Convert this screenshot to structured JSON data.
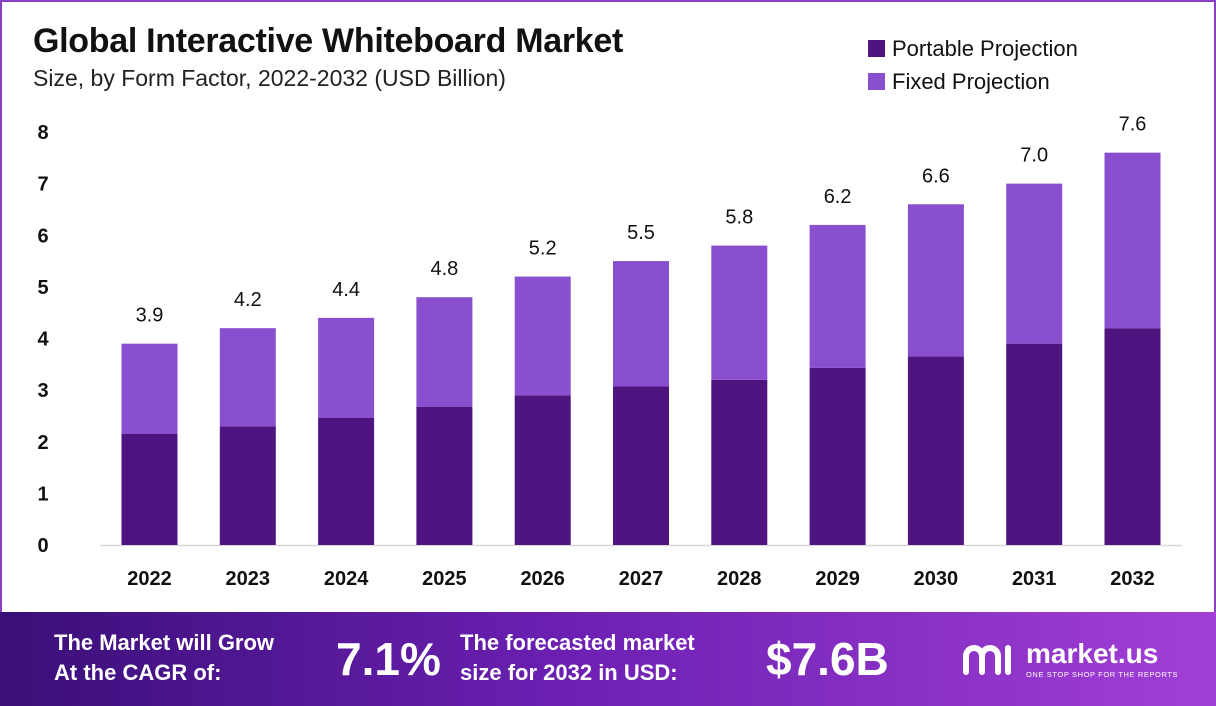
{
  "header": {
    "title": "Global Interactive Whiteboard Market",
    "subtitle": "Size, by Form Factor, 2022-2032 (USD Billion)"
  },
  "legend": {
    "items": [
      {
        "label": "Portable Projection",
        "color": "#4f1480"
      },
      {
        "label": "Fixed Projection",
        "color": "#8a4fcf"
      }
    ]
  },
  "chart_data": {
    "type": "bar",
    "stacked": true,
    "categories": [
      "2022",
      "2023",
      "2024",
      "2025",
      "2026",
      "2027",
      "2028",
      "2029",
      "2030",
      "2031",
      "2032"
    ],
    "series": [
      {
        "name": "Portable Projection",
        "color": "#4f1480",
        "values": [
          2.15,
          2.3,
          2.46,
          2.68,
          2.9,
          3.07,
          3.2,
          3.43,
          3.65,
          3.9,
          4.2
        ]
      },
      {
        "name": "Fixed Projection",
        "color": "#8a4fcf",
        "values": [
          1.75,
          1.9,
          1.94,
          2.12,
          2.3,
          2.43,
          2.6,
          2.77,
          2.95,
          3.1,
          3.4
        ]
      }
    ],
    "totals": [
      3.9,
      4.2,
      4.4,
      4.8,
      5.2,
      5.5,
      5.8,
      6.2,
      6.6,
      7.0,
      7.6
    ],
    "total_labels": [
      "3.9",
      "4.2",
      "4.4",
      "4.8",
      "5.2",
      "5.5",
      "5.8",
      "6.2",
      "6.6",
      "7.0",
      "7.6"
    ],
    "yticks": [
      "0",
      "1",
      "2",
      "3",
      "4",
      "5",
      "6",
      "7",
      "8"
    ],
    "ylim": [
      0,
      8
    ],
    "grid": false,
    "legend_position": "top-right"
  },
  "footer": {
    "cagr_label_line1": "The Market will Grow",
    "cagr_label_line2": "At the CAGR of:",
    "cagr_value": "7.1%",
    "forecast_label_line1": "The forecasted market",
    "forecast_label_line2": "size for 2032 in USD:",
    "forecast_value": "$7.6B",
    "brand_name": "market.us",
    "brand_tagline": "ONE STOP SHOP FOR THE REPORTS",
    "brand_logo_icon": "market-us-logo-icon"
  }
}
